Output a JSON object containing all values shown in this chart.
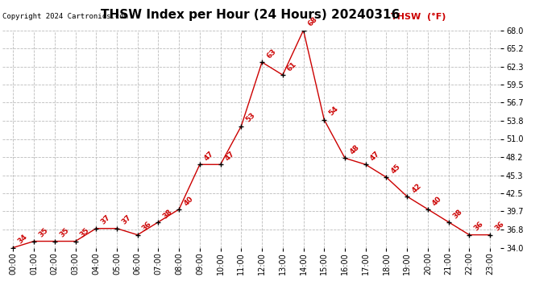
{
  "title": "THSW Index per Hour (24 Hours) 20240316",
  "copyright": "Copyright 2024 Cartronics.com",
  "legend_label": "THSW  (°F)",
  "hours": [
    "00:00",
    "01:00",
    "02:00",
    "03:00",
    "04:00",
    "05:00",
    "06:00",
    "07:00",
    "08:00",
    "09:00",
    "10:00",
    "11:00",
    "12:00",
    "13:00",
    "14:00",
    "15:00",
    "16:00",
    "17:00",
    "18:00",
    "19:00",
    "20:00",
    "21:00",
    "22:00",
    "23:00"
  ],
  "values": [
    34,
    35,
    35,
    35,
    37,
    37,
    36,
    38,
    40,
    47,
    47,
    53,
    63,
    61,
    68,
    54,
    48,
    47,
    45,
    42,
    40,
    38,
    36,
    36
  ],
  "line_color": "#cc0000",
  "marker_color": "#000000",
  "label_color": "#cc0000",
  "background_color": "#ffffff",
  "grid_color": "#bbbbbb",
  "ylim_min": 34.0,
  "ylim_max": 68.0,
  "ytick_labels": [
    "34.0",
    "36.8",
    "39.7",
    "42.5",
    "45.3",
    "48.2",
    "51.0",
    "53.8",
    "56.7",
    "59.5",
    "62.3",
    "65.2",
    "68.0"
  ],
  "ytick_values": [
    34.0,
    36.8,
    39.7,
    42.5,
    45.3,
    48.2,
    51.0,
    53.8,
    56.7,
    59.5,
    62.3,
    65.2,
    68.0
  ],
  "title_fontsize": 11,
  "label_fontsize": 6.5,
  "copyright_fontsize": 6.5,
  "legend_fontsize": 8,
  "tick_fontsize": 7
}
